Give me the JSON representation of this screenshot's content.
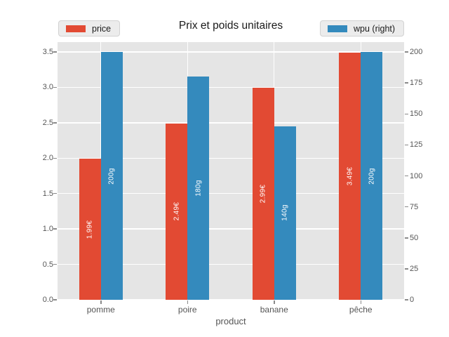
{
  "title": "Prix et poids unitaires",
  "xlabel": "product",
  "legend_left": {
    "label": "price",
    "color": "#E24A33"
  },
  "legend_right": {
    "label": "wpu (right)",
    "color": "#348ABD"
  },
  "chart_data": {
    "type": "bar",
    "title": "Prix et poids unitaires",
    "xlabel": "product",
    "categories": [
      "pomme",
      "poire",
      "banane",
      "pêche"
    ],
    "series": [
      {
        "name": "price",
        "axis": "left",
        "color": "#E24A33",
        "values": [
          1.99,
          2.49,
          2.99,
          3.49
        ],
        "bar_labels": [
          "1.99€",
          "2.49€",
          "2.99€",
          "3.49€"
        ]
      },
      {
        "name": "wpu (right)",
        "axis": "right",
        "color": "#348ABD",
        "values": [
          200,
          180,
          140,
          200
        ],
        "bar_labels": [
          "200g",
          "180g",
          "140g",
          "200g"
        ]
      }
    ],
    "left_axis": {
      "min": 0,
      "max": 3.5,
      "tick_labels": [
        "0.0",
        "0.5",
        "1.0",
        "1.5",
        "2.0",
        "2.5",
        "3.0",
        "3.5"
      ],
      "tick_values": [
        0,
        0.5,
        1,
        1.5,
        2,
        2.5,
        3,
        3.5
      ]
    },
    "right_axis": {
      "min": 0,
      "max": 200,
      "tick_labels": [
        "0",
        "25",
        "50",
        "75",
        "100",
        "125",
        "150",
        "175",
        "200"
      ],
      "tick_values": [
        0,
        25,
        50,
        75,
        100,
        125,
        150,
        175,
        200
      ]
    },
    "legend_position": "top",
    "grid": "on",
    "panel_bg": "#e5e5e5",
    "grid_color": "#ffffff"
  }
}
